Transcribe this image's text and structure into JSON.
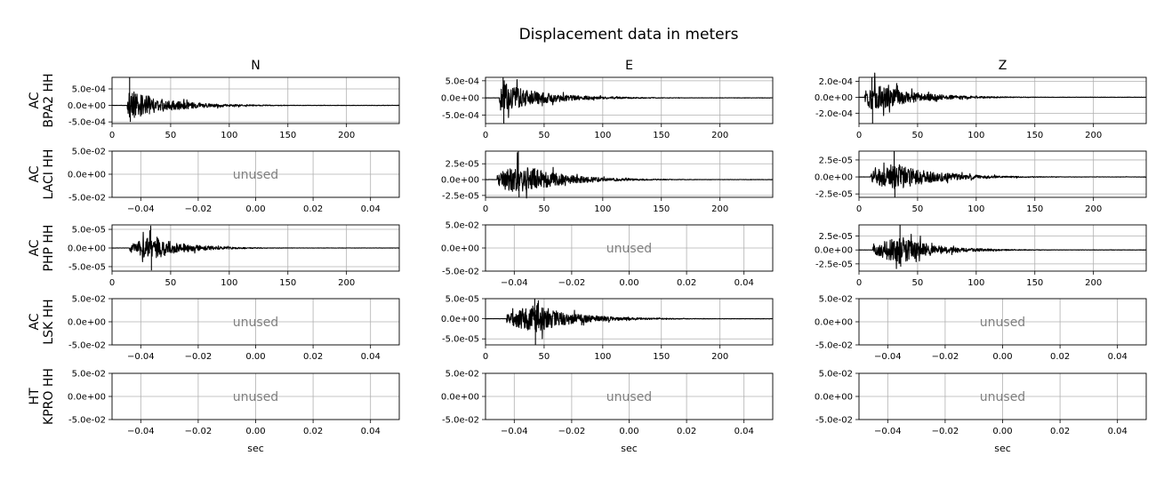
{
  "chart_data": {
    "type": "line",
    "title": "Displacement data in meters",
    "columns": [
      "N",
      "E",
      "Z"
    ],
    "rows": [
      {
        "network": "AC",
        "station_line": "BPA2 HH"
      },
      {
        "network": "AC",
        "station_line": "LACI HH"
      },
      {
        "network": "AC",
        "station_line": "PHP HH"
      },
      {
        "network": "AC",
        "station_line": "LSK HH"
      },
      {
        "network": "HT",
        "station_line": "KPRO HH"
      }
    ],
    "xlabel": "sec",
    "unused_label": "unused",
    "time_axis": {
      "xlim": [
        0,
        245
      ],
      "xticks": [
        0,
        50,
        100,
        150,
        200
      ],
      "xtick_labels": [
        "0",
        "50",
        "100",
        "150",
        "200"
      ]
    },
    "unused_axis": {
      "xlim": [
        -0.05,
        0.05
      ],
      "xticks": [
        -0.04,
        -0.02,
        0.0,
        0.02,
        0.04
      ],
      "xtick_labels": [
        "−0.04",
        "−0.02",
        "0.00",
        "0.02",
        "0.04"
      ],
      "ylim": [
        -0.05,
        0.05
      ],
      "yticks": [
        0.05,
        0.0,
        -0.05
      ],
      "ytick_labels": [
        "5.0e-02",
        "0.0e+00",
        "-5.0e-02"
      ]
    },
    "panels": [
      {
        "row": 0,
        "col": 0,
        "used": true,
        "ylim": [
          -0.00055,
          0.00085
        ],
        "yticks": [
          0.0005,
          0.0,
          -0.0005
        ],
        "ytick_labels": [
          "5.0e-04",
          "0.0e+00",
          "-5.0e-04"
        ],
        "onset_s": 13,
        "peak_time_s": 15,
        "peak_m": 0.00085,
        "trough_m": -0.0005,
        "decay_end_s": 120
      },
      {
        "row": 0,
        "col": 1,
        "used": true,
        "ylim": [
          -0.00075,
          0.0006
        ],
        "yticks": [
          0.0005,
          0.0,
          -0.0005
        ],
        "ytick_labels": [
          "5.0e-04",
          "0.0e+00",
          "-5.0e-04"
        ],
        "onset_s": 12,
        "peak_time_s": 15,
        "peak_m": 0.0006,
        "trough_m": -0.00075,
        "decay_end_s": 130
      },
      {
        "row": 0,
        "col": 2,
        "used": true,
        "ylim": [
          -0.00033,
          0.00025
        ],
        "yticks": [
          0.0002,
          0.0,
          -0.0002
        ],
        "ytick_labels": [
          "2.0e-04",
          "0.0e+00",
          "-2.0e-04"
        ],
        "onset_s": 5,
        "peak_time_s": 11,
        "peak_m": 0.00025,
        "trough_m": -0.00033,
        "decay_end_s": 120
      },
      {
        "row": 1,
        "col": 0,
        "used": false
      },
      {
        "row": 1,
        "col": 1,
        "used": true,
        "ylim": [
          -2.8e-05,
          4.5e-05
        ],
        "yticks": [
          2.5e-05,
          0.0,
          -2.5e-05
        ],
        "ytick_labels": [
          "2.5e-05",
          "0.0e+00",
          "-2.5e-05"
        ],
        "onset_s": 10,
        "peak_time_s": 28,
        "peak_m": 4.5e-05,
        "trough_m": -2.8e-05,
        "decay_end_s": 140
      },
      {
        "row": 1,
        "col": 2,
        "used": true,
        "ylim": [
          -3e-05,
          3.8e-05
        ],
        "yticks": [
          2.5e-05,
          0.0,
          -2.5e-05
        ],
        "ytick_labels": [
          "2.5e-05",
          "0.0e+00",
          "-2.5e-05"
        ],
        "onset_s": 10,
        "peak_time_s": 30,
        "peak_m": 3.8e-05,
        "trough_m": -3e-05,
        "decay_end_s": 140
      },
      {
        "row": 2,
        "col": 0,
        "used": true,
        "ylim": [
          -6.2e-05,
          6.2e-05
        ],
        "yticks": [
          5e-05,
          0.0,
          -5e-05
        ],
        "ytick_labels": [
          "5.0e-05",
          "0.0e+00",
          "-5.0e-05"
        ],
        "onset_s": 15,
        "peak_time_s": 33,
        "peak_m": 6e-05,
        "trough_m": -6e-05,
        "decay_end_s": 120
      },
      {
        "row": 2,
        "col": 1,
        "used": false
      },
      {
        "row": 2,
        "col": 2,
        "used": true,
        "ylim": [
          -3.8e-05,
          4.5e-05
        ],
        "yticks": [
          2.5e-05,
          0.0,
          -2.5e-05
        ],
        "ytick_labels": [
          "2.5e-05",
          "0.0e+00",
          "-2.5e-05"
        ],
        "onset_s": 12,
        "peak_time_s": 35,
        "peak_m": 4.5e-05,
        "trough_m": -3e-05,
        "decay_end_s": 130
      },
      {
        "row": 3,
        "col": 0,
        "used": false
      },
      {
        "row": 3,
        "col": 1,
        "used": true,
        "ylim": [
          -6.5e-05,
          5e-05
        ],
        "yticks": [
          5e-05,
          0.0,
          -5e-05
        ],
        "ytick_labels": [
          "5.0e-05",
          "0.0e+00",
          "-5.0e-05"
        ],
        "onset_s": 18,
        "peak_time_s": 42,
        "peak_m": 5e-05,
        "trough_m": -6.5e-05,
        "decay_end_s": 150
      },
      {
        "row": 3,
        "col": 2,
        "used": false
      },
      {
        "row": 4,
        "col": 0,
        "used": false
      },
      {
        "row": 4,
        "col": 1,
        "used": false
      },
      {
        "row": 4,
        "col": 2,
        "used": false
      }
    ],
    "grid": true
  }
}
